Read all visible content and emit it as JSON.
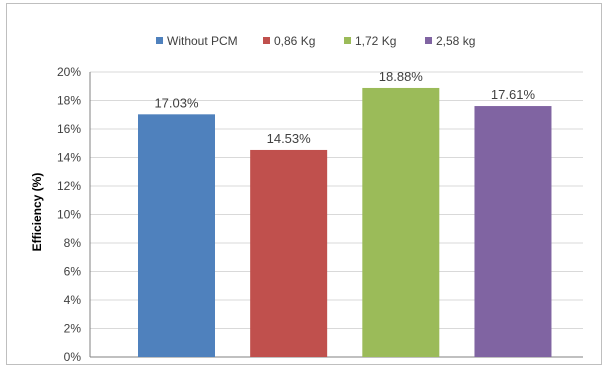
{
  "chart_data": {
    "type": "bar",
    "title": "",
    "xlabel": "",
    "ylabel": "Efficiency (%)",
    "ylim": [
      0,
      20
    ],
    "yticks": [
      "0%",
      "2%",
      "4%",
      "6%",
      "8%",
      "10%",
      "12%",
      "14%",
      "16%",
      "18%",
      "20%"
    ],
    "grid": true,
    "legend_position": "top",
    "series": [
      {
        "name": "Without PCM",
        "value": 17.03,
        "label": "17.03%",
        "color": "#4F81BD"
      },
      {
        "name": "0,86 Kg",
        "value": 14.53,
        "label": "14.53%",
        "color": "#C0504D"
      },
      {
        "name": "1,72 Kg",
        "value": 18.88,
        "label": "18.88%",
        "color": "#9BBB59"
      },
      {
        "name": "2,58 kg",
        "value": 17.61,
        "label": "17.61%",
        "color": "#8064A2"
      }
    ]
  }
}
